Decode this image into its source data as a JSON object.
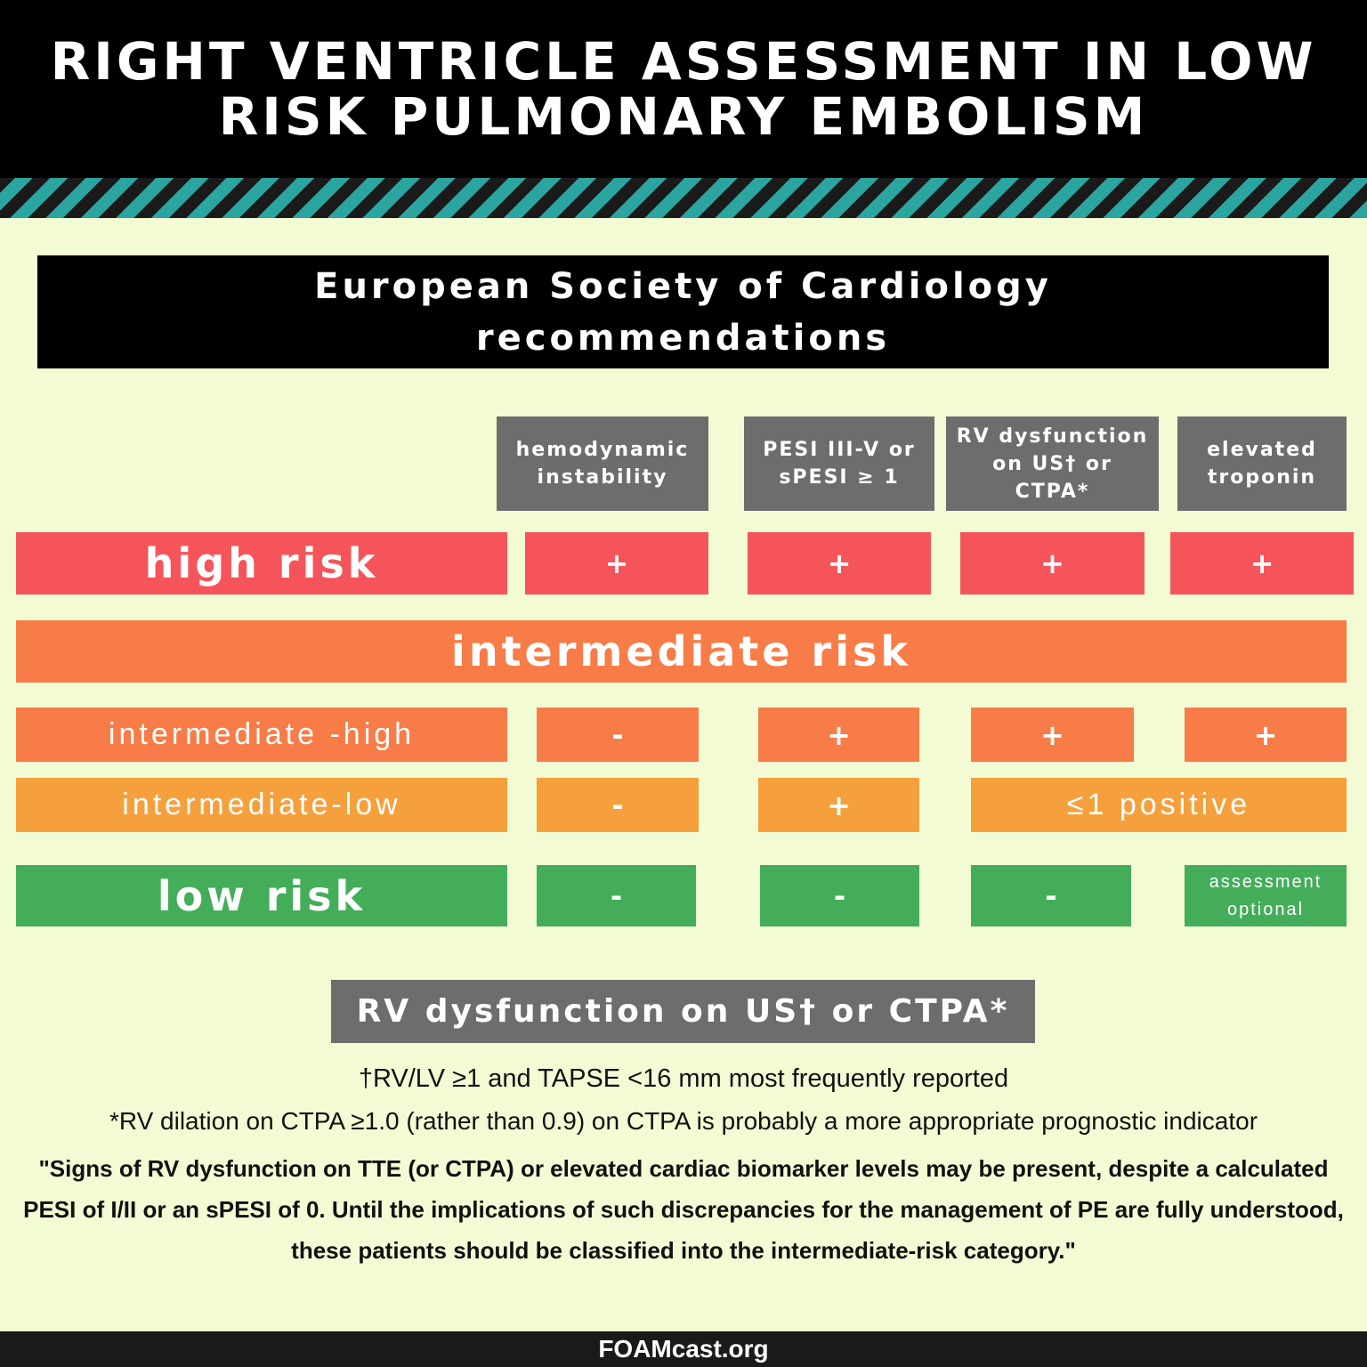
{
  "header": {
    "title": "RIGHT VENTRICLE ASSESSMENT IN LOW RISK PULMONARY EMBOLISM"
  },
  "section_title": "European Society of Cardiology recommendations",
  "columns": [
    "hemodynamic instability",
    "PESI III-V or sPESI ≥ 1",
    "RV dysfunction on US† or CTPA*",
    "elevated troponin"
  ],
  "rows": [
    {
      "label": "high risk",
      "cells": [
        "+",
        "+",
        "+",
        "+"
      ]
    },
    {
      "label": "intermediate risk"
    },
    {
      "label": "intermediate -high",
      "cells": [
        "-",
        "+",
        "+",
        "+"
      ]
    },
    {
      "label": "intermediate-low",
      "cells": [
        "-",
        "+",
        "≤1 positive"
      ]
    },
    {
      "label": "low risk",
      "cells": [
        "-",
        "-",
        "-",
        "assessment optional"
      ]
    }
  ],
  "footnote_title": "RV dysfunction on US† or CTPA*",
  "footnotes": [
    "†RV/LV ≥1 and TAPSE <16 mm most frequently reported",
    "*RV dilation on CTPA ≥1.0 (rather than 0.9) on CTPA is probably a more appropriate prognostic indicator"
  ],
  "quote": "\"Signs of RV dysfunction on TTE (or CTPA) or elevated cardiac biomarker levels may be present, despite a calculated PESI of I/II or an sPESI of 0. Until the implications of such discrepancies for the management of PE are fully understood, these patients should be classified into the intermediate-risk category.\"",
  "footer": "FOAMcast.org"
}
